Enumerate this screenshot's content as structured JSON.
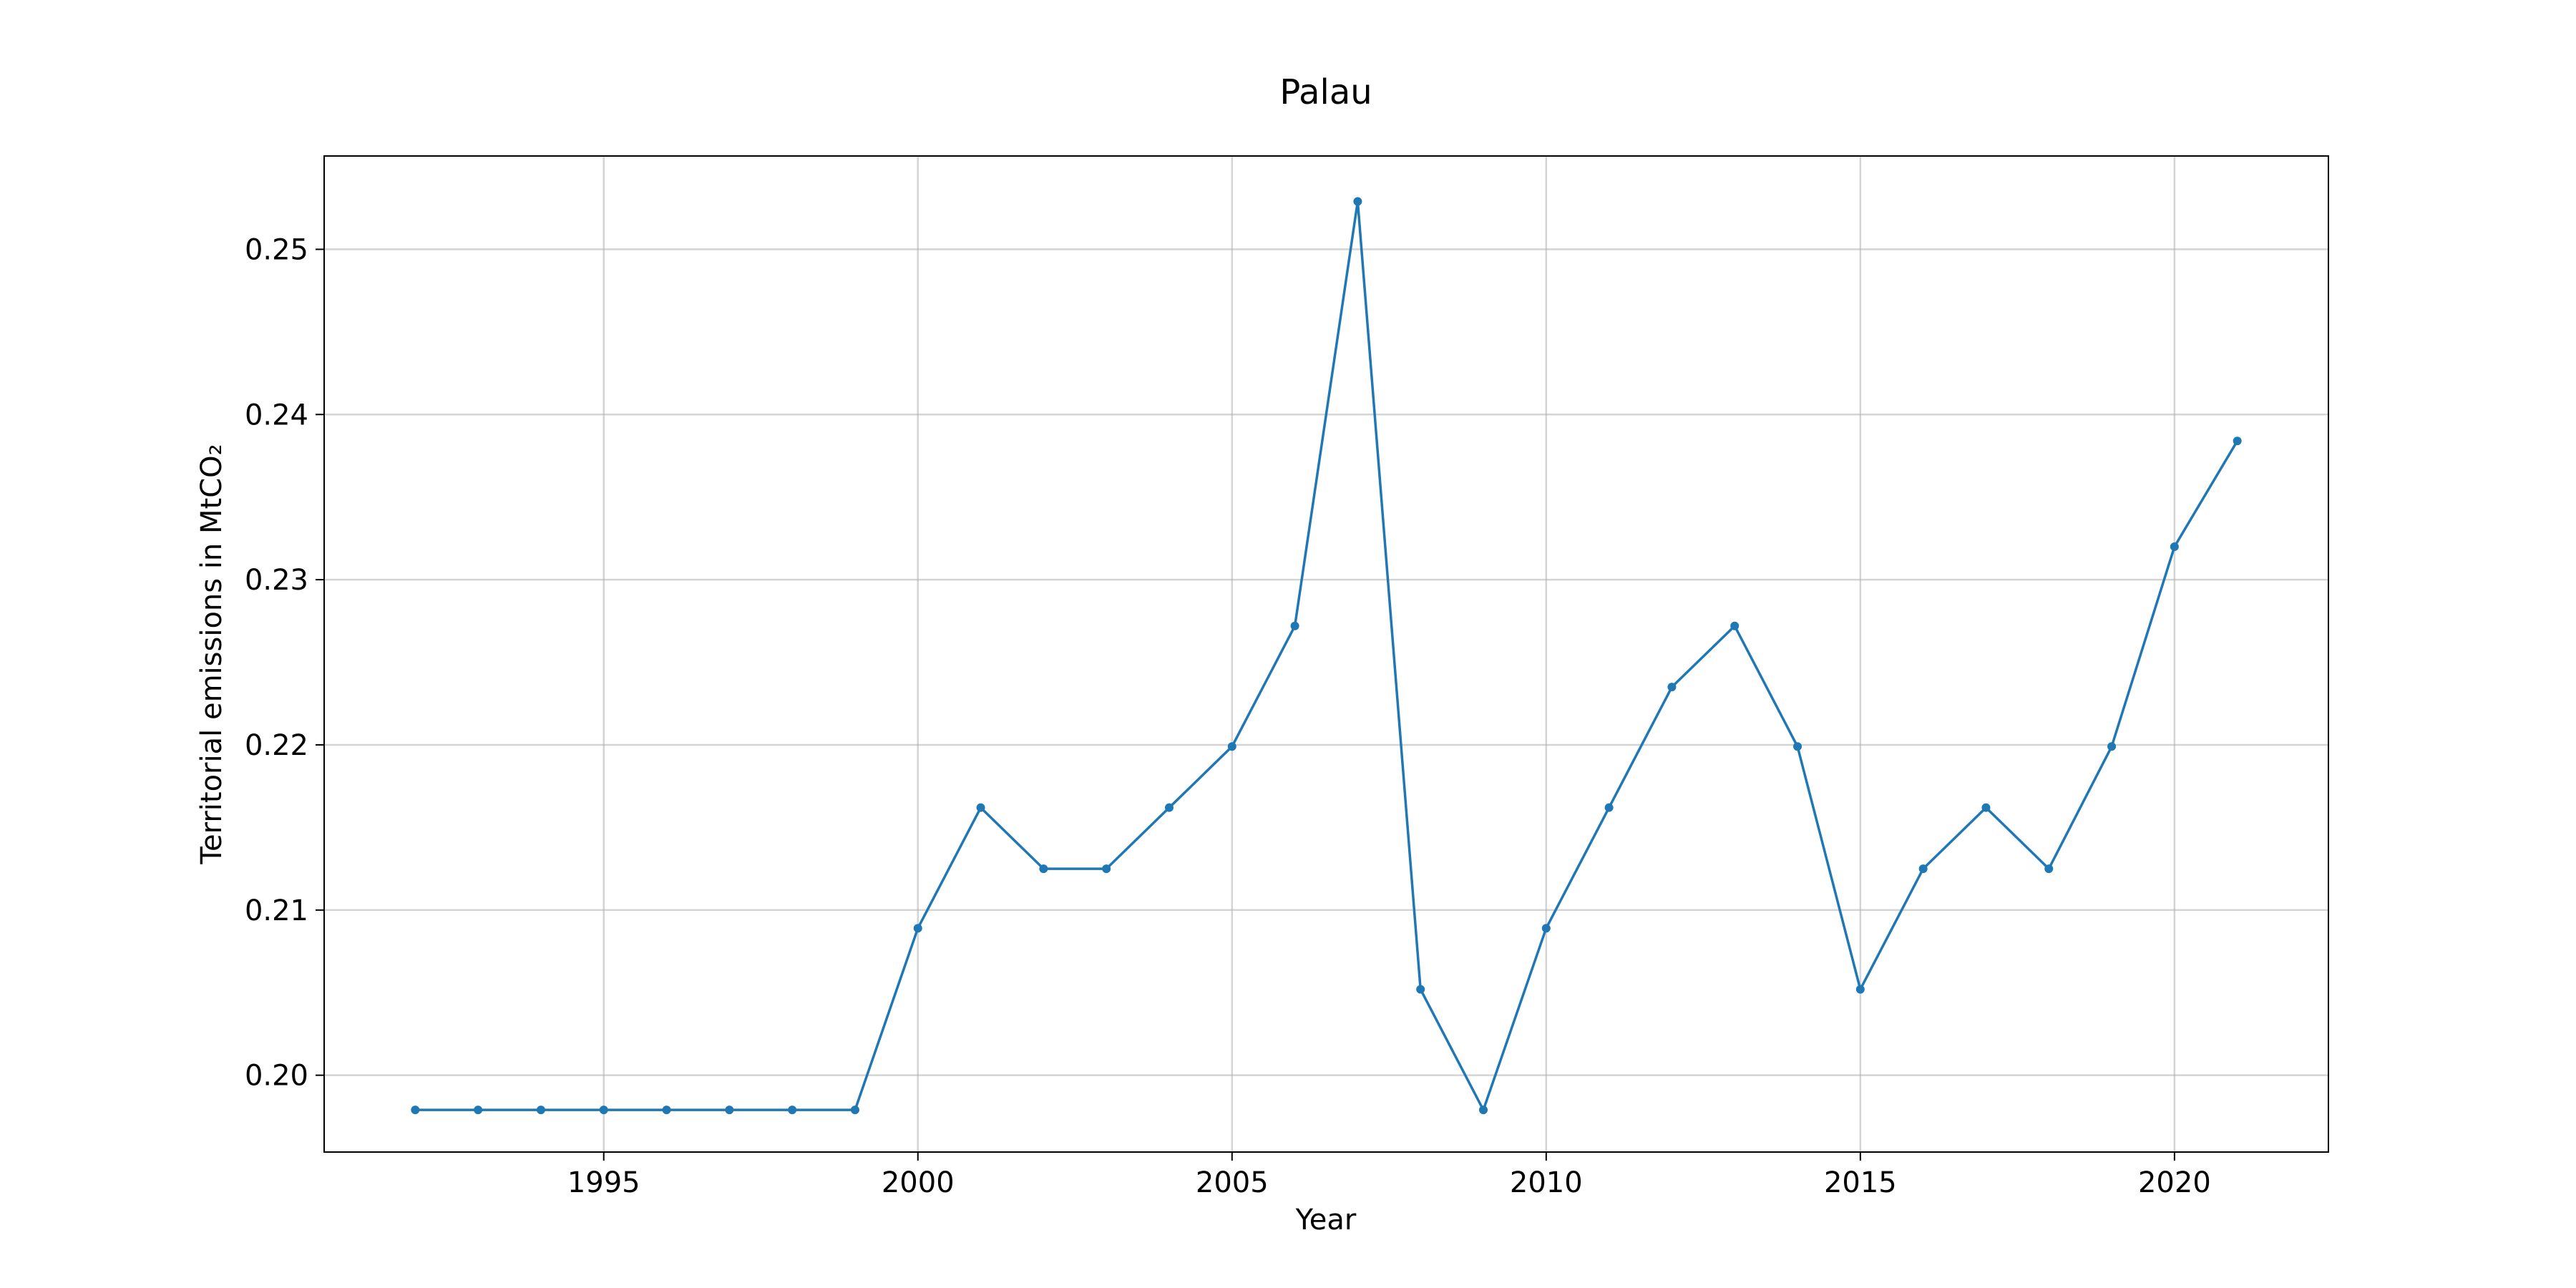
{
  "chart_data": {
    "type": "line",
    "title": "Palau",
    "xlabel": "Year",
    "ylabel": "Territorial emissions in MtCO₂",
    "x": [
      1992,
      1993,
      1994,
      1995,
      1996,
      1997,
      1998,
      1999,
      2000,
      2001,
      2002,
      2003,
      2004,
      2005,
      2006,
      2007,
      2008,
      2009,
      2010,
      2011,
      2012,
      2013,
      2014,
      2015,
      2016,
      2017,
      2018,
      2019,
      2020,
      2021
    ],
    "series": [
      {
        "values": [
          0.1979,
          0.1979,
          0.1979,
          0.1979,
          0.1979,
          0.1979,
          0.1979,
          0.1979,
          0.2089,
          0.2162,
          0.2125,
          0.2125,
          0.2162,
          0.2199,
          0.2272,
          0.2529,
          0.2052,
          0.1979,
          0.2089,
          0.2162,
          0.2235,
          0.2272,
          0.2199,
          0.2052,
          0.2125,
          0.2162,
          0.2125,
          0.2199,
          0.232,
          0.2384
        ],
        "color": "#1f77b4"
      }
    ],
    "xticks": [
      1995,
      2000,
      2005,
      2010,
      2015,
      2020
    ],
    "yticks": [
      0.2,
      0.21,
      0.22,
      0.23,
      0.24,
      0.25
    ],
    "ytick_labels": [
      "0.20",
      "0.21",
      "0.22",
      "0.23",
      "0.24",
      "0.25"
    ],
    "xlim": [
      1990.55,
      2022.45
    ],
    "ylim": [
      0.19535,
      0.25565
    ],
    "grid": true
  }
}
